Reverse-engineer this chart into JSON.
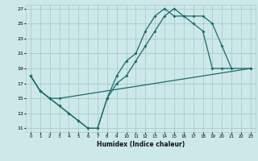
{
  "xlabel": "Humidex (Indice chaleur)",
  "background_color": "#cce8e8",
  "grid_color": "#aacccc",
  "line_color": "#1a6b6b",
  "xlim": [
    -0.5,
    23.5
  ],
  "ylim": [
    10.5,
    27.5
  ],
  "xticks": [
    0,
    1,
    2,
    3,
    4,
    5,
    6,
    7,
    8,
    9,
    10,
    11,
    12,
    13,
    14,
    15,
    16,
    17,
    18,
    19,
    20,
    21,
    22,
    23
  ],
  "yticks": [
    11,
    13,
    15,
    17,
    19,
    21,
    23,
    25,
    27
  ],
  "line1_x": [
    0,
    1,
    2,
    3,
    4,
    5,
    6,
    7,
    8,
    9,
    10,
    11,
    12,
    13,
    14,
    15,
    16,
    17,
    18,
    19,
    20,
    21
  ],
  "line1_y": [
    18,
    16,
    15,
    14,
    13,
    12,
    11,
    11,
    15,
    17,
    18,
    20,
    22,
    24,
    26,
    27,
    26,
    26,
    26,
    25,
    22,
    19
  ],
  "line2_x": [
    0,
    1,
    2,
    3,
    4,
    5,
    6,
    7,
    8,
    9,
    10,
    11,
    12,
    13,
    14,
    15,
    16,
    17,
    18,
    19,
    20,
    23
  ],
  "line2_y": [
    18,
    16,
    15,
    14,
    13,
    12,
    11,
    11,
    15,
    18,
    20,
    21,
    24,
    26,
    27,
    26,
    26,
    25,
    24,
    19,
    19,
    19
  ],
  "line3_x": [
    0,
    1,
    2,
    3,
    23
  ],
  "line3_y": [
    18,
    16,
    15,
    15,
    19
  ]
}
